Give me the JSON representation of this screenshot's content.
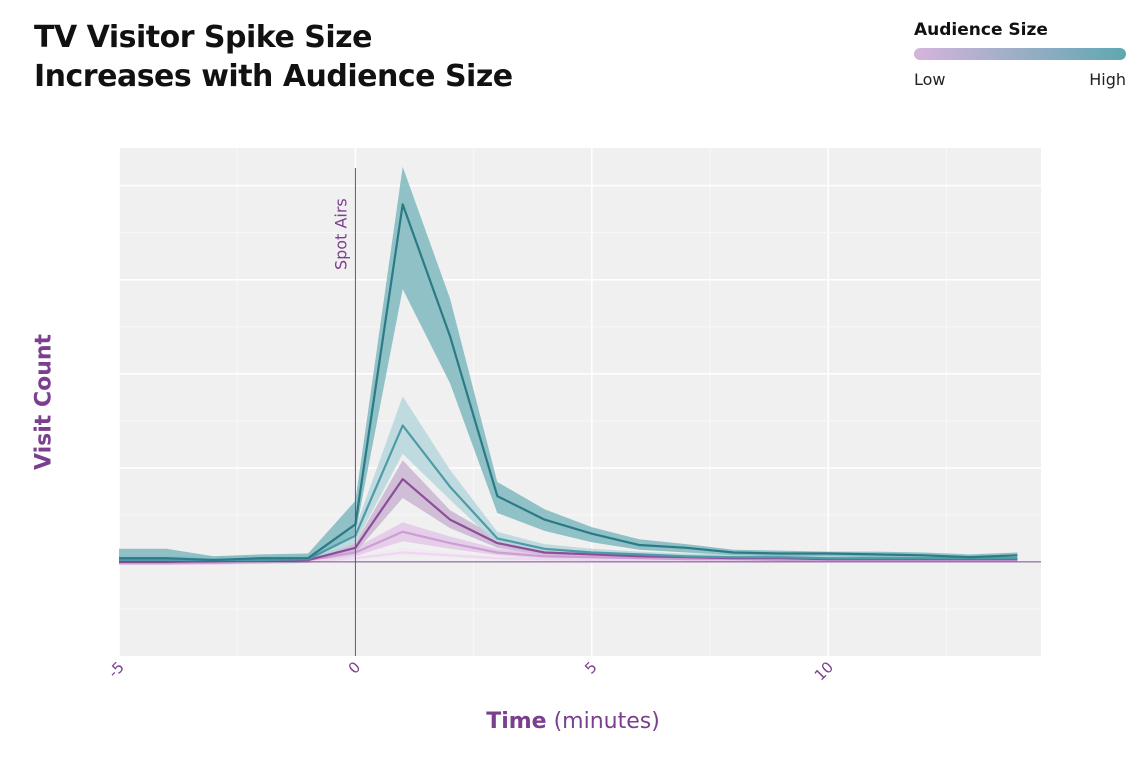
{
  "header": {
    "title_line1": "TV Visitor Spike Size",
    "title_line2": "Increases with Audience Size"
  },
  "legend": {
    "title": "Audience Size",
    "low_label": "Low",
    "high_label": "High",
    "gradient_colors": [
      "#d6b4dc",
      "#5fa8b0"
    ]
  },
  "chart_data": {
    "type": "line",
    "title": "",
    "xlabel_bold": "Time",
    "xlabel_rest": "(minutes)",
    "ylabel": "Visit Count",
    "xlim": [
      -5,
      14.5
    ],
    "ylim": [
      -1.0,
      4.4
    ],
    "x_ticks": [
      -5,
      0,
      5,
      10
    ],
    "x_tick_labels": [
      "-5",
      "0",
      "5",
      "10"
    ],
    "y_tick_labels_shown": false,
    "grid": true,
    "annotation": {
      "x": 0,
      "label": "Spot Airs"
    },
    "colors": {
      "panel": "#f0f0f0",
      "vline": "#7b3f8f",
      "axis_text": "#7b3f8f"
    },
    "series": [
      {
        "color": "#ecd9ee",
        "band": "#f3e8f4",
        "x": [
          -5,
          -4,
          -3,
          -2,
          -1,
          0,
          1,
          2,
          3,
          4,
          5,
          6,
          7,
          8,
          9,
          10,
          11,
          12,
          13,
          14
        ],
        "y": [
          0.0,
          0.0,
          0.0,
          0.0,
          0.01,
          0.04,
          0.1,
          0.07,
          0.04,
          0.03,
          0.02,
          0.02,
          0.02,
          0.01,
          0.01,
          0.01,
          0.01,
          0.01,
          0.01,
          0.01
        ],
        "lower": [
          -0.02,
          -0.02,
          -0.02,
          -0.02,
          -0.01,
          0.02,
          0.06,
          0.05,
          0.02,
          0.01,
          0.01,
          0.0,
          0.0,
          0.0,
          0.0,
          0.0,
          0.0,
          0.0,
          0.0,
          0.0
        ],
        "upper": [
          0.02,
          0.02,
          0.02,
          0.02,
          0.03,
          0.06,
          0.15,
          0.1,
          0.06,
          0.05,
          0.04,
          0.04,
          0.03,
          0.03,
          0.03,
          0.03,
          0.03,
          0.03,
          0.03,
          0.03
        ]
      },
      {
        "color": "#cc9ed4",
        "band": "#e3c8e8",
        "x": [
          -5,
          -4,
          -3,
          -2,
          -1,
          0,
          1,
          2,
          3,
          4,
          5,
          6,
          7,
          8,
          9,
          10,
          11,
          12,
          13,
          14
        ],
        "y": [
          0.0,
          0.0,
          0.0,
          0.01,
          0.02,
          0.1,
          0.32,
          0.2,
          0.1,
          0.06,
          0.05,
          0.04,
          0.03,
          0.03,
          0.02,
          0.02,
          0.02,
          0.02,
          0.02,
          0.02
        ],
        "lower": [
          -0.03,
          -0.03,
          -0.03,
          -0.02,
          -0.01,
          0.06,
          0.22,
          0.14,
          0.07,
          0.04,
          0.03,
          0.02,
          0.01,
          0.01,
          0.0,
          0.0,
          0.0,
          0.0,
          0.0,
          0.0
        ],
        "upper": [
          0.03,
          0.03,
          0.03,
          0.04,
          0.05,
          0.15,
          0.42,
          0.27,
          0.14,
          0.09,
          0.07,
          0.06,
          0.05,
          0.05,
          0.04,
          0.04,
          0.04,
          0.04,
          0.04,
          0.04
        ]
      },
      {
        "color": "#8e4d9b",
        "band": "#cab5d2",
        "x": [
          -5,
          -4,
          -3,
          -2,
          -1,
          0,
          1,
          2,
          3,
          4,
          5,
          6,
          7,
          8,
          9,
          10,
          11,
          12,
          13,
          14
        ],
        "y": [
          0.0,
          0.0,
          0.01,
          0.01,
          0.02,
          0.15,
          0.88,
          0.45,
          0.2,
          0.1,
          0.08,
          0.06,
          0.05,
          0.04,
          0.04,
          0.03,
          0.03,
          0.03,
          0.03,
          0.03
        ],
        "lower": [
          -0.03,
          -0.03,
          -0.02,
          -0.02,
          -0.01,
          0.1,
          0.68,
          0.36,
          0.15,
          0.07,
          0.05,
          0.04,
          0.03,
          0.02,
          0.02,
          0.01,
          0.01,
          0.01,
          0.01,
          0.01
        ],
        "upper": [
          0.03,
          0.03,
          0.04,
          0.04,
          0.05,
          0.2,
          1.08,
          0.55,
          0.26,
          0.13,
          0.11,
          0.09,
          0.07,
          0.06,
          0.06,
          0.05,
          0.05,
          0.05,
          0.05,
          0.05
        ]
      },
      {
        "color": "#4e9aa5",
        "band": "#b6d7dd",
        "x": [
          -5,
          -4,
          -3,
          -2,
          -1,
          0,
          1,
          2,
          3,
          4,
          5,
          6,
          7,
          8,
          9,
          10,
          11,
          12,
          13,
          14
        ],
        "y": [
          0.02,
          0.02,
          0.02,
          0.02,
          0.03,
          0.28,
          1.45,
          0.8,
          0.25,
          0.14,
          0.1,
          0.08,
          0.06,
          0.05,
          0.05,
          0.04,
          0.04,
          0.04,
          0.04,
          0.04
        ],
        "lower": [
          -0.02,
          -0.02,
          -0.02,
          -0.02,
          -0.01,
          0.2,
          1.15,
          0.66,
          0.19,
          0.1,
          0.07,
          0.05,
          0.04,
          0.03,
          0.03,
          0.02,
          0.02,
          0.02,
          0.02,
          0.02
        ],
        "upper": [
          0.06,
          0.06,
          0.06,
          0.06,
          0.07,
          0.36,
          1.76,
          0.98,
          0.32,
          0.19,
          0.14,
          0.11,
          0.09,
          0.08,
          0.08,
          0.07,
          0.07,
          0.07,
          0.07,
          0.07
        ]
      },
      {
        "color": "#2b7a86",
        "band": "#7fb8c0",
        "x": [
          -5,
          -4,
          -3,
          -2,
          -1,
          0,
          1,
          2,
          3,
          4,
          5,
          6,
          7,
          8,
          9,
          10,
          11,
          12,
          13,
          14
        ],
        "y": [
          0.04,
          0.04,
          0.02,
          0.04,
          0.04,
          0.4,
          3.8,
          2.4,
          0.7,
          0.45,
          0.3,
          0.18,
          0.15,
          0.1,
          0.09,
          0.09,
          0.08,
          0.07,
          0.05,
          0.07
        ],
        "lower": [
          -0.02,
          -0.02,
          -0.02,
          -0.01,
          0.0,
          0.3,
          2.9,
          1.9,
          0.52,
          0.33,
          0.21,
          0.13,
          0.1,
          0.07,
          0.06,
          0.06,
          0.05,
          0.04,
          0.02,
          0.04
        ],
        "upper": [
          0.14,
          0.14,
          0.06,
          0.08,
          0.09,
          0.65,
          4.2,
          2.8,
          0.85,
          0.56,
          0.37,
          0.24,
          0.19,
          0.13,
          0.12,
          0.11,
          0.11,
          0.1,
          0.08,
          0.1
        ]
      }
    ]
  }
}
